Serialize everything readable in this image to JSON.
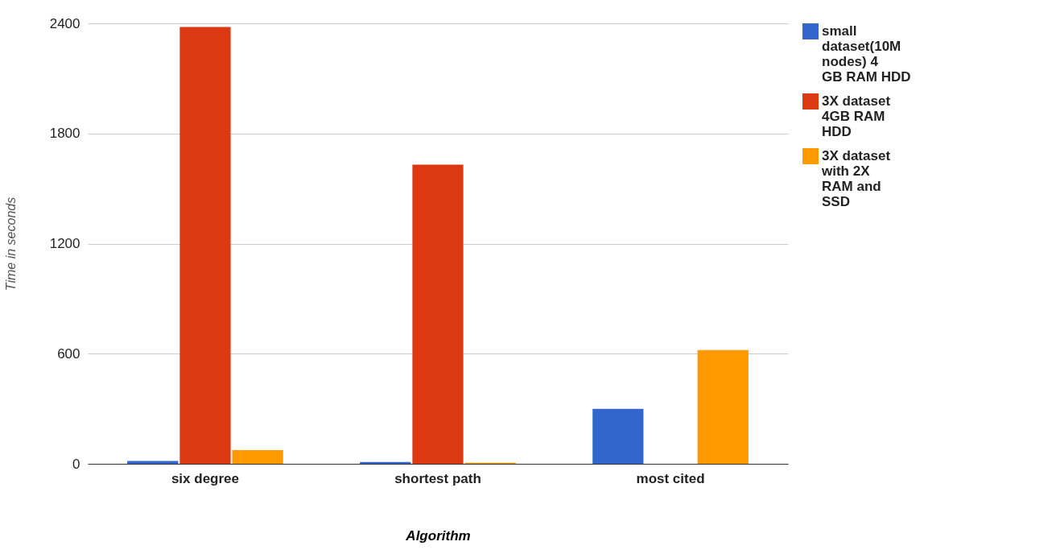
{
  "chart_data": {
    "type": "bar",
    "xlabel": "Algorithm",
    "ylabel": "Time in seconds",
    "categories": [
      "six degree",
      "shortest path",
      "most cited"
    ],
    "series": [
      {
        "name": "small dataset(10M nodes) 4 GB RAM HDD",
        "color": "#3366cc",
        "values": [
          15,
          10,
          300
        ]
      },
      {
        "name": "3X dataset 4GB RAM HDD",
        "color": "#dc3912",
        "values": [
          2380,
          1630,
          0
        ]
      },
      {
        "name": "3X dataset with 2X RAM and SSD",
        "color": "#ff9900",
        "values": [
          75,
          5,
          620
        ]
      }
    ],
    "ylim": [
      0,
      2400
    ],
    "yticks": [
      0,
      600,
      1200,
      1800,
      2400
    ],
    "grid": "y",
    "legend": "right"
  }
}
